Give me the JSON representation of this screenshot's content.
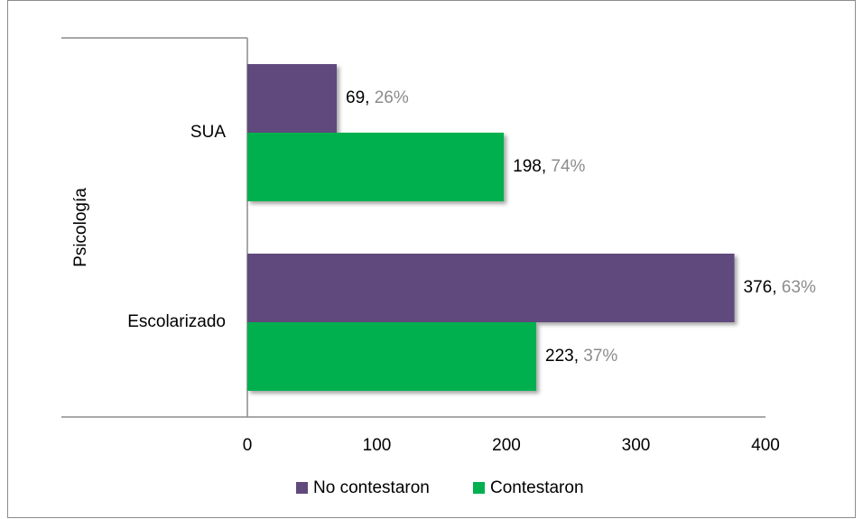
{
  "chart_data": {
    "type": "bar",
    "orientation": "horizontal",
    "group_label": "Psicología",
    "categories": [
      "SUA",
      "Escolarizado"
    ],
    "series": [
      {
        "name": "No contestaron",
        "color": "#604a7b",
        "values": [
          69,
          376
        ],
        "value_labels": [
          "69, 26%",
          "376, 63%"
        ]
      },
      {
        "name": "Contestaron",
        "color": "#00b050",
        "values": [
          198,
          223
        ],
        "value_labels": [
          "198, 74%",
          "223, 37%"
        ]
      }
    ],
    "xlim": [
      0,
      400
    ],
    "xticks": [
      0,
      100,
      200,
      300,
      400
    ],
    "grid": false,
    "legend": "bottom"
  }
}
